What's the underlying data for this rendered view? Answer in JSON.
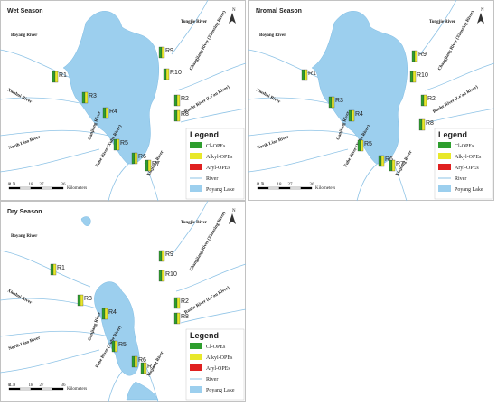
{
  "panels": [
    {
      "title": "Wet Season",
      "sites": [
        "R1",
        "R2",
        "R3",
        "R4",
        "R5",
        "R6",
        "R7",
        "R8",
        "R9",
        "R10"
      ]
    },
    {
      "title": "Nromal Season",
      "sites": [
        "R1",
        "R2",
        "R3",
        "R4",
        "R5",
        "R6",
        "R7",
        "R8",
        "R9",
        "R10"
      ]
    },
    {
      "title": "Dry Season",
      "sites": [
        "R1",
        "R2",
        "R3",
        "R4",
        "R5",
        "R6",
        "R7",
        "R8",
        "R9",
        "R10"
      ]
    }
  ],
  "rivers": [
    "Boyang River",
    "Xiushui River",
    "Changjiang River (Xianxing River)",
    "Tongjie River",
    "Raohe River (Le'an River)",
    "North Liao River",
    "Ganjiang River",
    "Fuhe River (Xuhe River)",
    "Xinjiang River"
  ],
  "legend": {
    "title": "Legend",
    "items": [
      "Cl-OPEs",
      "Alkyl-OPEs",
      "Aryl-OPEs",
      "River",
      "Poyang Lake"
    ]
  },
  "scale": {
    "ticks": [
      "0",
      "4.5",
      "9",
      "18",
      "27",
      "36"
    ],
    "unit": "Kilometers"
  },
  "north": "N"
}
